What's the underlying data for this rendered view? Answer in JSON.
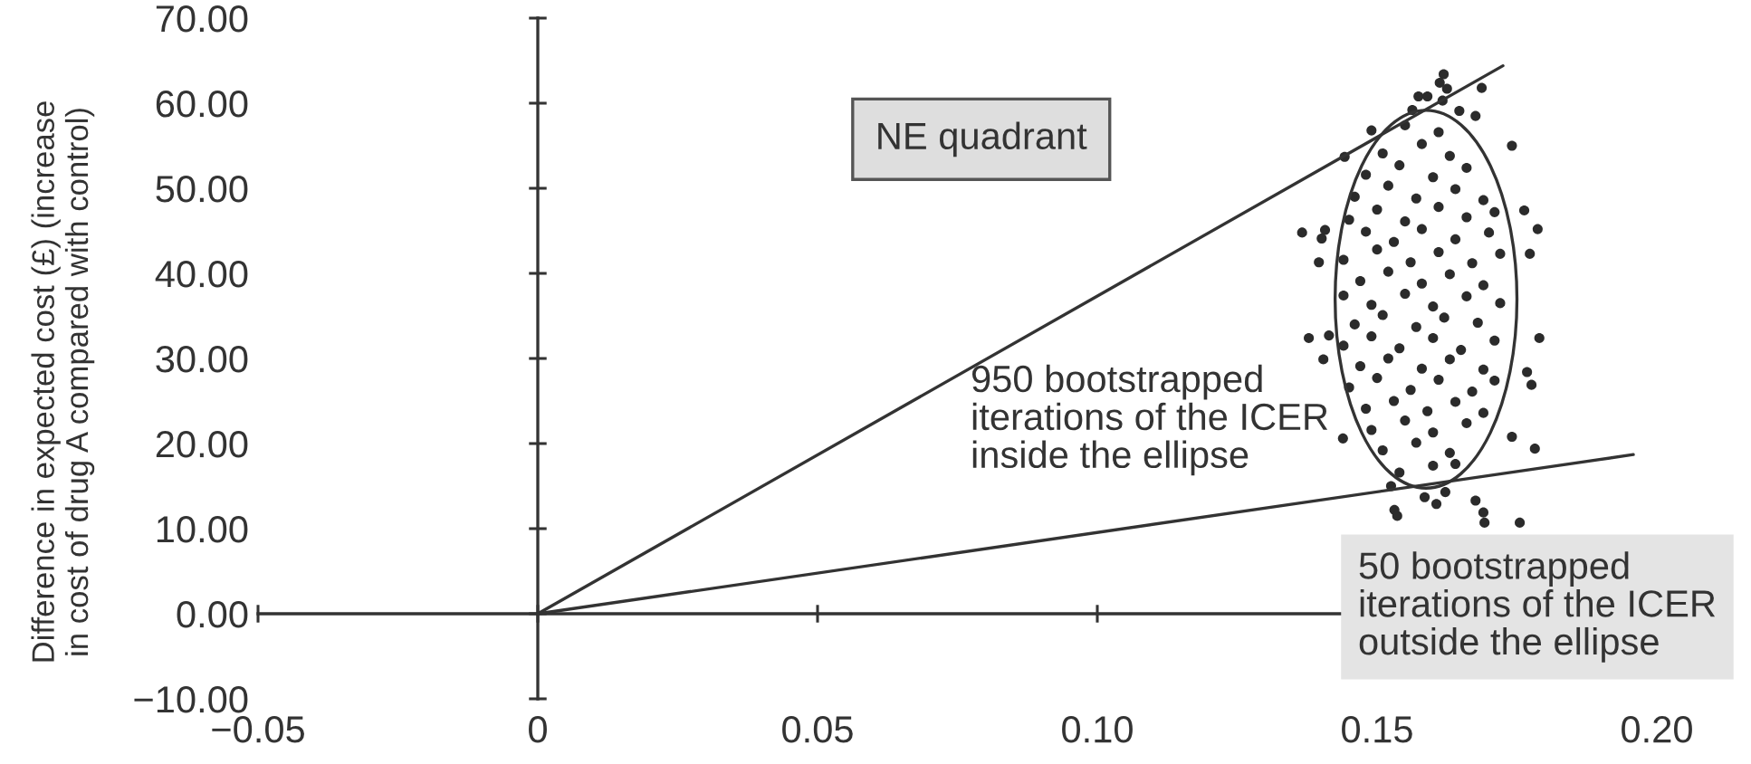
{
  "chart_data": {
    "type": "scatter",
    "ylabel": "Difference in expected cost (£) (increase\nin cost of drug A compared with control)",
    "xlim": [
      -0.05,
      0.2
    ],
    "ylim": [
      -10,
      70
    ],
    "xticks": [
      {
        "value": -0.05,
        "label": "−0.05"
      },
      0,
      0.05,
      {
        "value": 0.1,
        "label": "0.10"
      },
      0.15,
      {
        "value": 0.2,
        "label": "0.20"
      }
    ],
    "yticks": [
      {
        "value": -10,
        "label": "−10.00"
      },
      {
        "value": 0,
        "label": "0.00"
      },
      {
        "value": 10,
        "label": "10.00"
      },
      {
        "value": 20,
        "label": "20.00"
      },
      {
        "value": 30,
        "label": "30.00"
      },
      {
        "value": 40,
        "label": "40.00"
      },
      {
        "value": 50,
        "label": "50.00"
      },
      {
        "value": 60,
        "label": "60.00"
      },
      {
        "value": 70,
        "label": "70.00"
      }
    ],
    "series": [
      {
        "type": "scatter",
        "marker": "circle",
        "color": "#2b2b2b",
        "x": [
          0.1619,
          0.1612,
          0.1625,
          0.1687,
          0.1574,
          0.159,
          0.1617,
          0.1563,
          0.1647,
          0.1676,
          0.149,
          0.1442,
          0.1741,
          0.1366,
          0.1407,
          0.1401,
          0.1396,
          0.1763,
          0.1787,
          0.1773,
          0.1378,
          0.1414,
          0.1404,
          0.179,
          0.1768,
          0.1776,
          0.1741,
          0.1782,
          0.1439,
          0.1525,
          0.1531,
          0.1536,
          0.1585,
          0.1606,
          0.1622,
          0.1676,
          0.169,
          0.1692,
          0.1755,
          0.155,
          0.161,
          0.151,
          0.158,
          0.163,
          0.148,
          0.154,
          0.16,
          0.166,
          0.146,
          0.152,
          0.157,
          0.164,
          0.169,
          0.145,
          0.15,
          0.155,
          0.161,
          0.166,
          0.171,
          0.148,
          0.153,
          0.158,
          0.164,
          0.17,
          0.144,
          0.15,
          0.156,
          0.161,
          0.167,
          0.172,
          0.147,
          0.152,
          0.158,
          0.163,
          0.169,
          0.144,
          0.149,
          0.155,
          0.16,
          0.166,
          0.172,
          0.146,
          0.151,
          0.157,
          0.162,
          0.168,
          0.144,
          0.149,
          0.154,
          0.16,
          0.165,
          0.171,
          0.147,
          0.152,
          0.158,
          0.163,
          0.169,
          0.145,
          0.15,
          0.156,
          0.161,
          0.167,
          0.171,
          0.148,
          0.153,
          0.159,
          0.164,
          0.169,
          0.149,
          0.155,
          0.16,
          0.166,
          0.151,
          0.157,
          0.163,
          0.154,
          0.16,
          0.164
        ],
        "values": [
          63.4,
          62.4,
          61.7,
          61.8,
          60.8,
          60.8,
          60.3,
          59.2,
          59.1,
          58.5,
          56.8,
          53.7,
          55.0,
          44.8,
          45.1,
          44.1,
          41.3,
          47.4,
          45.2,
          42.3,
          32.4,
          32.7,
          29.9,
          32.4,
          28.4,
          26.9,
          20.8,
          19.4,
          20.6,
          15.0,
          12.2,
          11.5,
          13.7,
          12.9,
          14.3,
          13.3,
          11.9,
          10.7,
          10.7,
          57.4,
          56.6,
          54.1,
          55.2,
          53.8,
          51.6,
          52.7,
          51.3,
          52.4,
          49.0,
          50.3,
          48.8,
          49.9,
          48.6,
          46.3,
          47.5,
          46.1,
          47.8,
          46.6,
          47.2,
          44.9,
          43.7,
          45.2,
          44.0,
          44.8,
          41.6,
          42.8,
          41.3,
          42.5,
          41.2,
          42.3,
          39.1,
          40.2,
          38.8,
          39.9,
          38.6,
          37.4,
          36.3,
          37.6,
          36.1,
          37.3,
          36.5,
          34.0,
          35.1,
          33.7,
          34.8,
          34.2,
          31.5,
          32.6,
          31.2,
          32.4,
          31.0,
          32.1,
          29.1,
          30.0,
          28.8,
          29.9,
          28.7,
          26.6,
          27.7,
          26.3,
          27.5,
          26.1,
          27.4,
          24.1,
          25.0,
          23.8,
          24.9,
          23.6,
          21.6,
          22.7,
          21.3,
          22.4,
          19.2,
          20.1,
          18.9,
          16.6,
          17.4,
          17.6
        ]
      },
      {
        "type": "line",
        "color": "#333333",
        "x": [
          0,
          0.1725
        ],
        "values": [
          0,
          64.4
        ]
      },
      {
        "type": "line",
        "color": "#333333",
        "x": [
          0,
          0.1958
        ],
        "values": [
          0,
          18.7
        ]
      }
    ],
    "annotations": [
      "NE quadrant",
      "950 bootstrapped\niterations of the ICER\ninside the ellipse",
      "50 bootstrapped\niterations of the ICER\noutside the ellipse"
    ]
  }
}
